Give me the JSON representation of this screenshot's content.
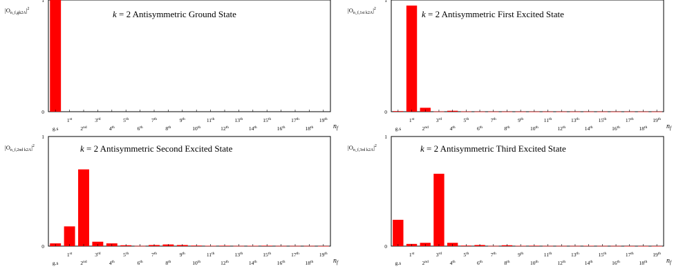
{
  "figure": {
    "x_axis_label": "n",
    "x_axis_label_sub": "f",
    "ticks": [
      {
        "main": "g.s",
        "sup": ""
      },
      {
        "main": "1",
        "sup": "st"
      },
      {
        "main": "2",
        "sup": "nd"
      },
      {
        "main": "3",
        "sup": "rd"
      },
      {
        "main": "4",
        "sup": "th"
      },
      {
        "main": "5",
        "sup": "th"
      },
      {
        "main": "6",
        "sup": "th"
      },
      {
        "main": "7",
        "sup": "th"
      },
      {
        "main": "8",
        "sup": "th"
      },
      {
        "main": "9",
        "sup": "th"
      },
      {
        "main": "10",
        "sup": "th"
      },
      {
        "main": "11",
        "sup": "th"
      },
      {
        "main": "12",
        "sup": "th"
      },
      {
        "main": "13",
        "sup": "th"
      },
      {
        "main": "14",
        "sup": "th"
      },
      {
        "main": "15",
        "sup": "th"
      },
      {
        "main": "16",
        "sup": "th"
      },
      {
        "main": "17",
        "sup": "th"
      },
      {
        "main": "18",
        "sup": "th"
      },
      {
        "main": "19",
        "sup": "th"
      }
    ],
    "bar_color": "#ff0000"
  },
  "chart_data": [
    {
      "type": "bar",
      "title": "k = 2 Antisymmetric Ground State",
      "title_prefix": "k",
      "title_rest": " = 2 Antisymmetric Ground State",
      "ylabel": "|O_{n_f,gk2A}|^2",
      "ylabel_sub": "n_f,gk2A",
      "ylim": [
        0,
        1
      ],
      "yticks": [
        "0",
        "1"
      ],
      "categories": [
        "g.s",
        "1st",
        "2nd",
        "3rd",
        "4th",
        "5th",
        "6th",
        "7th",
        "8th",
        "9th",
        "10th",
        "11th",
        "12th",
        "13th",
        "14th",
        "15th",
        "16th",
        "17th",
        "18th",
        "19th"
      ],
      "values": [
        1.0,
        0,
        0,
        0,
        0,
        0,
        0,
        0,
        0,
        0,
        0,
        0,
        0,
        0,
        0,
        0,
        0,
        0,
        0,
        0
      ]
    },
    {
      "type": "bar",
      "title": "k = 2 Antisymmetric First Excited State",
      "title_prefix": "k",
      "title_rest": " = 2 Antisymmetric First Excited State",
      "ylabel": "|O_{n_f,1st_k2A}|^2",
      "ylabel_sub": "n_f,1st k2A",
      "ylim": [
        0,
        1
      ],
      "yticks": [
        "0",
        "1"
      ],
      "categories": [
        "g.s",
        "1st",
        "2nd",
        "3rd",
        "4th",
        "5th",
        "6th",
        "7th",
        "8th",
        "9th",
        "10th",
        "11th",
        "12th",
        "13th",
        "14th",
        "15th",
        "16th",
        "17th",
        "18th",
        "19th"
      ],
      "values": [
        0.005,
        0.95,
        0.035,
        0.002,
        0.008,
        0.002,
        0.001,
        0.001,
        0.001,
        0.001,
        0.001,
        0.001,
        0.001,
        0.001,
        0.001,
        0.001,
        0.001,
        0.001,
        0.001,
        0.001
      ]
    },
    {
      "type": "bar",
      "title": "k = 2 Antisymmetric Second Excited State",
      "title_prefix": "k",
      "title_rest": " = 2 Antisymmetric Second Excited State",
      "ylabel": "|O_{n_f,2nd_k2A}|^2",
      "ylabel_sub": "n_f,2nd k2A",
      "ylim": [
        0,
        1
      ],
      "yticks": [
        "0",
        "1"
      ],
      "categories": [
        "g.s",
        "1st",
        "2nd",
        "3rd",
        "4th",
        "5th",
        "6th",
        "7th",
        "8th",
        "9th",
        "10th",
        "11th",
        "12th",
        "13th",
        "14th",
        "15th",
        "16th",
        "17th",
        "18th",
        "19th"
      ],
      "values": [
        0.025,
        0.18,
        0.7,
        0.04,
        0.025,
        0.008,
        0.002,
        0.01,
        0.015,
        0.01,
        0.005,
        0.003,
        0.004,
        0.002,
        0.003,
        0.004,
        0.002,
        0.002,
        0.002,
        0.001
      ]
    },
    {
      "type": "bar",
      "title": "k = 2 Antisymmetric Third Excited State",
      "title_prefix": "k",
      "title_rest": " = 2 Antisymmetric Third Excited State",
      "ylabel": "|O_{n_f,3rd_k2A}|^2",
      "ylabel_sub": "n_f,3rd k2A",
      "ylim": [
        0,
        1
      ],
      "yticks": [
        "0",
        "1"
      ],
      "categories": [
        "g.s",
        "1st",
        "2nd",
        "3rd",
        "4th",
        "5th",
        "6th",
        "7th",
        "8th",
        "9th",
        "10th",
        "11th",
        "12th",
        "13th",
        "14th",
        "15th",
        "16th",
        "17th",
        "18th",
        "19th"
      ],
      "values": [
        0.24,
        0.02,
        0.03,
        0.66,
        0.03,
        0.005,
        0.01,
        0.002,
        0.008,
        0.003,
        0.004,
        0.002,
        0.002,
        0.002,
        0.003,
        0.002,
        0.002,
        0.001,
        0.001,
        0.001
      ]
    }
  ]
}
